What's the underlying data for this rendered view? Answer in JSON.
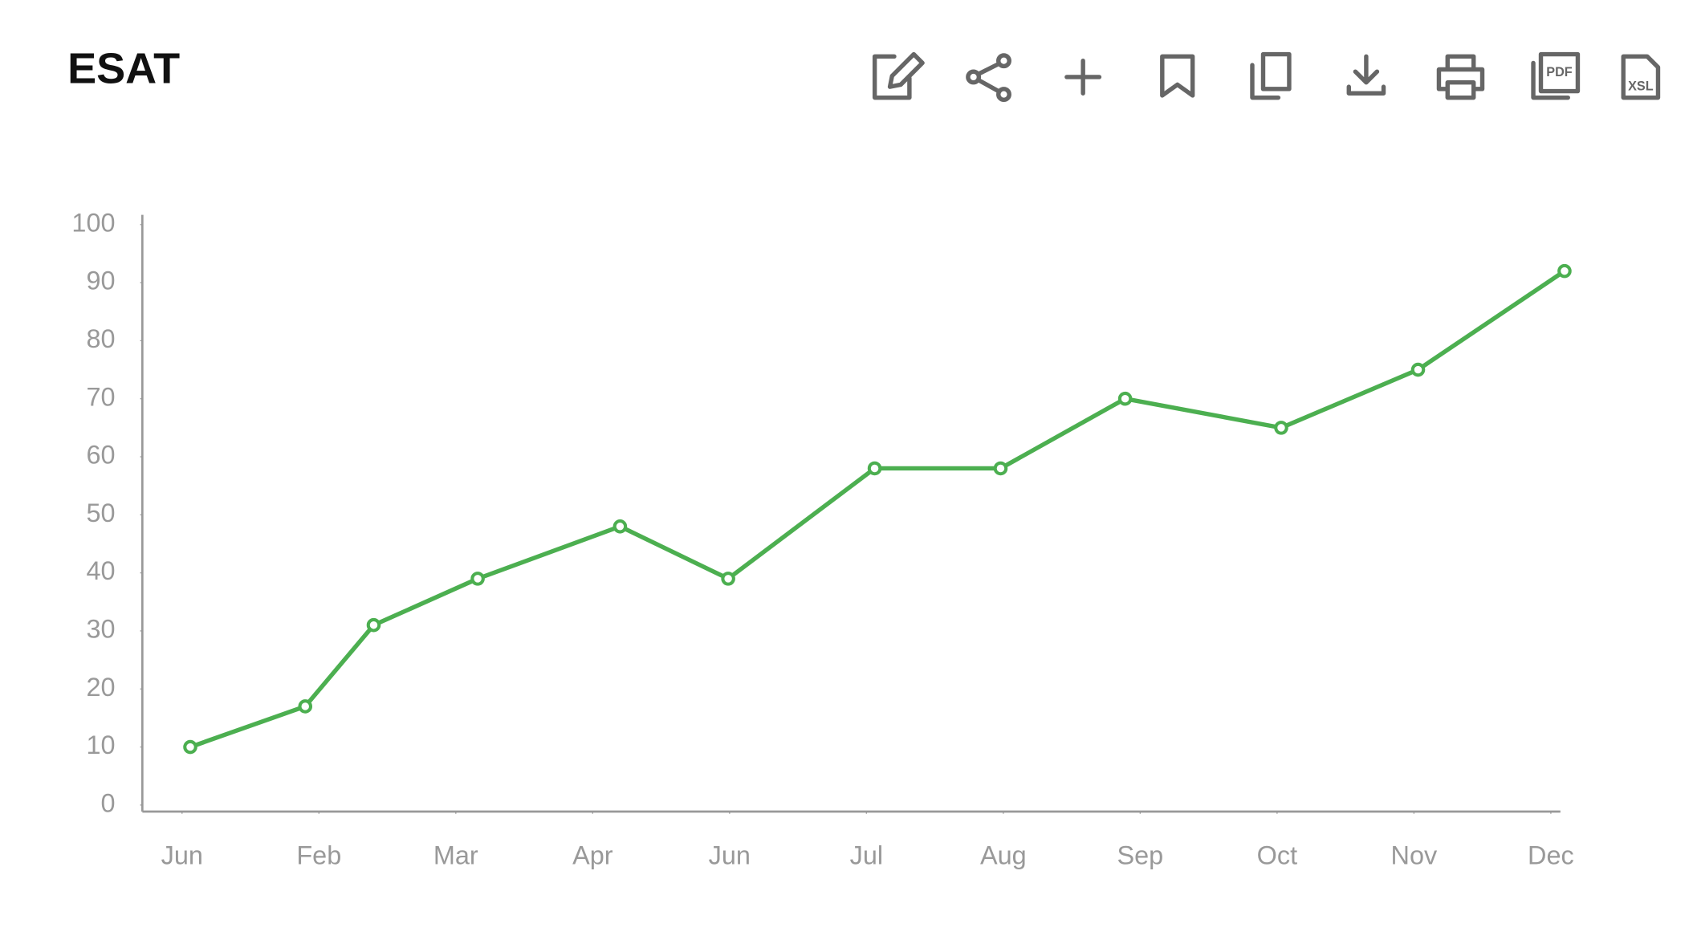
{
  "chart_data": {
    "type": "line",
    "title": "ESAT",
    "x": [
      0.06,
      0.9,
      1.4,
      2.16,
      3.2,
      3.99,
      5.06,
      5.98,
      6.89,
      8.03,
      9.03,
      10.1
    ],
    "series": [
      {
        "color": "#4caf50",
        "values": [
          10,
          17,
          31,
          39,
          48,
          39,
          58,
          58,
          70,
          65,
          75,
          92
        ]
      }
    ],
    "xlim": [
      -0.29,
      10.07
    ],
    "xticks": [
      {
        "value": 0,
        "label": "Jun"
      },
      {
        "value": 1,
        "label": "Feb"
      },
      {
        "value": 2,
        "label": "Mar"
      },
      {
        "value": 3,
        "label": "Apr"
      },
      {
        "value": 4,
        "label": "Jun"
      },
      {
        "value": 5,
        "label": "Jul"
      },
      {
        "value": 6,
        "label": "Aug"
      },
      {
        "value": 7,
        "label": "Sep"
      },
      {
        "value": 8,
        "label": "Oct"
      },
      {
        "value": 9,
        "label": "Nov"
      },
      {
        "value": 10,
        "label": "Dec"
      }
    ],
    "ylim": [
      0,
      100
    ],
    "yticks": [
      0,
      10,
      20,
      30,
      40,
      50,
      60,
      70,
      80,
      90,
      100
    ]
  },
  "toolbar": {
    "pdf_label": "PDF",
    "xsl_label": "XSL"
  }
}
